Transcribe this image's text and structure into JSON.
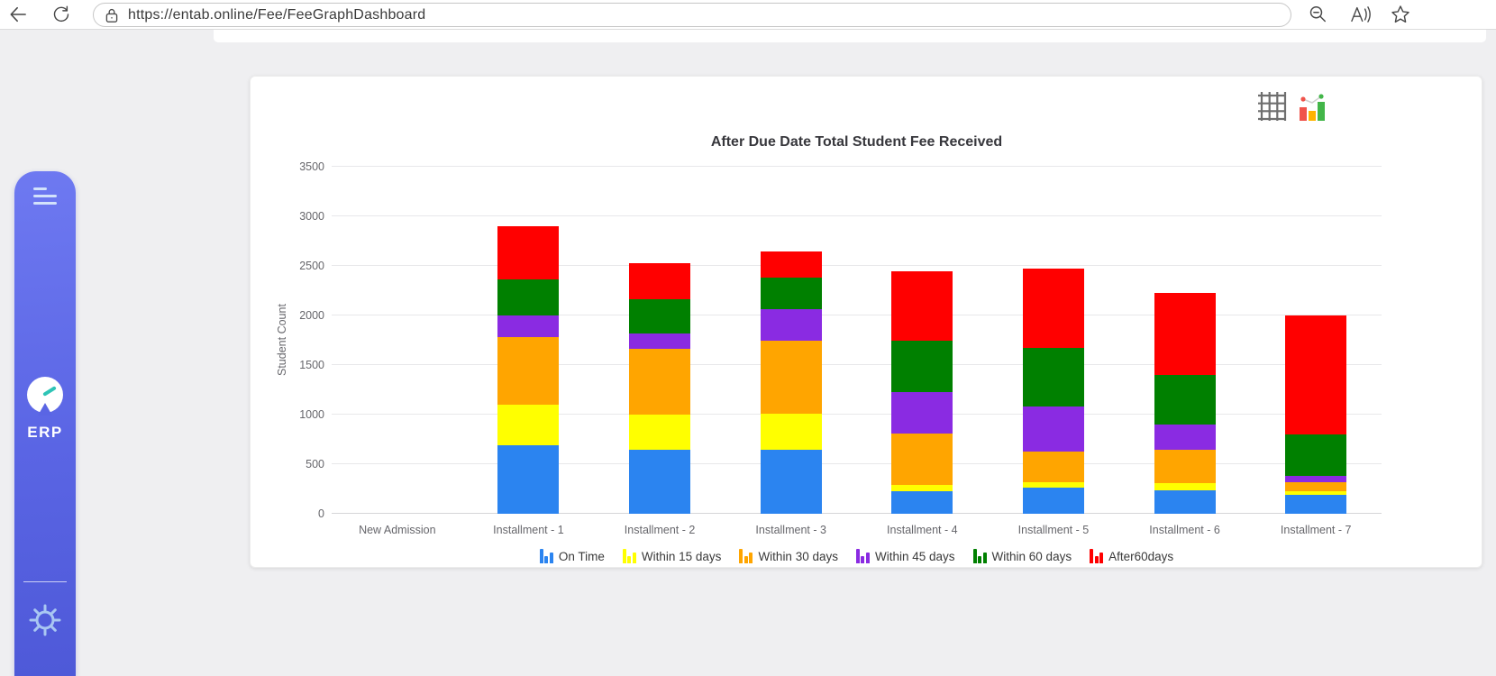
{
  "browser": {
    "url": "https://entab.online/Fee/FeeGraphDashboard",
    "icons": [
      "back",
      "refresh",
      "lock",
      "zoom-out",
      "read-aloud",
      "favorite"
    ]
  },
  "sidebar": {
    "logo_text": "ERP",
    "icons": [
      "menu",
      "gauge",
      "settings-gear"
    ]
  },
  "card": {
    "toolbar_icons": [
      "table-view",
      "chart-view"
    ]
  },
  "chart_data": {
    "type": "bar",
    "stacked": true,
    "title": "After Due Date Total Student Fee Received",
    "xlabel": "",
    "ylabel": "Student Count",
    "ylim": [
      0,
      3500
    ],
    "ytick_step": 500,
    "grid": true,
    "legend_position": "bottom",
    "categories": [
      "New Admission",
      "Installment - 1",
      "Installment - 2",
      "Installment - 3",
      "Installment - 4",
      "Installment - 5",
      "Installment - 6",
      "Installment - 7"
    ],
    "series": [
      {
        "name": "On Time",
        "color": "#2b84f0",
        "values": [
          0,
          690,
          650,
          650,
          230,
          260,
          240,
          190
        ]
      },
      {
        "name": "Within 15 days",
        "color": "#ffff00",
        "values": [
          0,
          410,
          350,
          360,
          60,
          60,
          70,
          40
        ]
      },
      {
        "name": "Within 30 days",
        "color": "#ffa500",
        "values": [
          0,
          680,
          660,
          740,
          520,
          310,
          340,
          90
        ]
      },
      {
        "name": "Within 45 days",
        "color": "#8a2be2",
        "values": [
          0,
          220,
          160,
          310,
          420,
          450,
          250,
          60
        ]
      },
      {
        "name": "Within 60 days",
        "color": "#008000",
        "values": [
          0,
          360,
          340,
          320,
          520,
          590,
          500,
          420
        ]
      },
      {
        "name": "After60days",
        "color": "#ff0000",
        "values": [
          0,
          540,
          370,
          270,
          700,
          800,
          830,
          1200
        ]
      }
    ]
  }
}
